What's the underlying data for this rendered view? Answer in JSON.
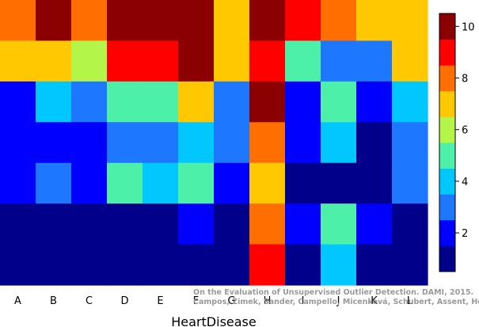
{
  "chart_data": {
    "type": "heatmap",
    "title": "",
    "xlabel": "HeartDisease",
    "ylabel": "",
    "categories": [
      "A",
      "B",
      "C",
      "D",
      "E",
      "F",
      "G",
      "H",
      "I",
      "J",
      "K",
      "L"
    ],
    "rows": 7,
    "values": [
      [
        8,
        10,
        8,
        10,
        10,
        10,
        7,
        10,
        9,
        8,
        7,
        7
      ],
      [
        7,
        7,
        6,
        9,
        9,
        10,
        7,
        9,
        5,
        3,
        3,
        7
      ],
      [
        2,
        4,
        3,
        5,
        5,
        7,
        3,
        10,
        2,
        5,
        2,
        4
      ],
      [
        2,
        2,
        2,
        3,
        3,
        4,
        3,
        8,
        2,
        4,
        1,
        3
      ],
      [
        2,
        3,
        2,
        5,
        4,
        5,
        2,
        7,
        1,
        1,
        1,
        3
      ],
      [
        1,
        1,
        1,
        1,
        1,
        2,
        1,
        8,
        2,
        5,
        2,
        1
      ],
      [
        1,
        1,
        1,
        1,
        1,
        1,
        1,
        9,
        1,
        4,
        1,
        1
      ]
    ],
    "colorbar": {
      "ticks": [
        2,
        4,
        6,
        8,
        10
      ],
      "min": 0.5,
      "max": 10.5
    },
    "palette": [
      "#00008B",
      "#0000FF",
      "#1E78FF",
      "#00C8FF",
      "#4CF0A8",
      "#B4F54A",
      "#FFC800",
      "#FF6E00",
      "#FF0000",
      "#8B0000"
    ],
    "legend": "colorbar right",
    "grid": false
  },
  "credit": {
    "line1": "On the Evaluation of Unsupervised Outlier Detection. DAMI, 2015.",
    "line2": "Campos, Zimek, Sander, Campello, Micenková, Schubert, Assent, Houle"
  }
}
